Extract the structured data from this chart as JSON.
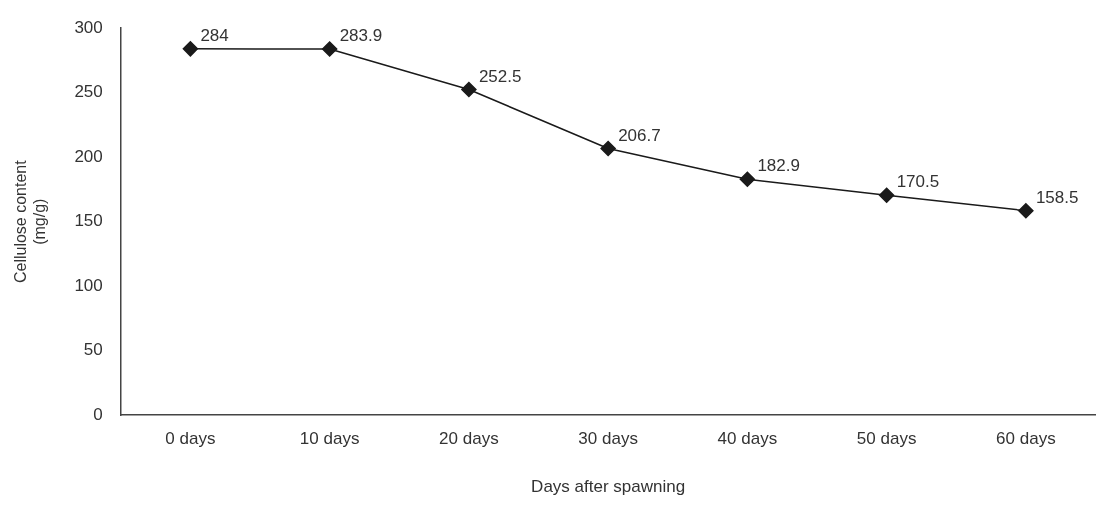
{
  "chart_data": {
    "type": "line",
    "xlabel": "Days after spawning",
    "ylabel": "Cellulose content\n(mg/g)",
    "categories": [
      "0 days",
      "10 days",
      "20 days",
      "30 days",
      "40 days",
      "50 days",
      "60 days"
    ],
    "series": [
      {
        "color": "#1a1a1a",
        "values": [
          284,
          283.9,
          252.5,
          206.7,
          182.9,
          170.5,
          158.5
        ]
      }
    ],
    "ylim": [
      0,
      300
    ],
    "yticks": [
      0,
      50,
      100,
      150,
      200,
      250,
      300
    ],
    "grid": false,
    "legend": false,
    "marker": "diamond",
    "line_style": "solid",
    "data_labels": true
  }
}
